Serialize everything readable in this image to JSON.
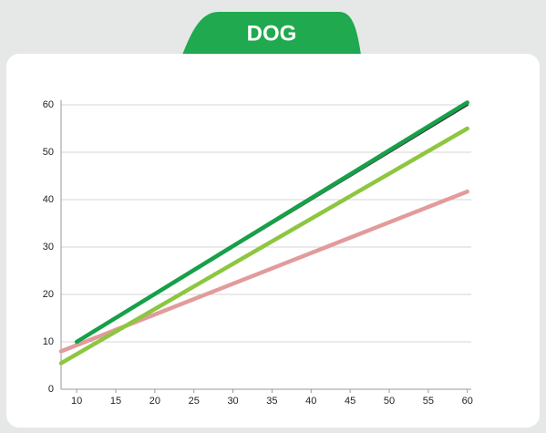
{
  "chart_data": {
    "type": "line",
    "title": "DOG",
    "xlim": [
      8,
      60.5
    ],
    "xticks": [
      10,
      15,
      20,
      25,
      30,
      35,
      40,
      45,
      50,
      55,
      60
    ],
    "ylim": [
      0,
      60
    ],
    "yticks": [
      0,
      10,
      20,
      30,
      40,
      50,
      60
    ],
    "grid": true,
    "series": [
      {
        "color": "#e29b9b",
        "x": [
          8,
          60
        ],
        "values": [
          8,
          41.7
        ]
      },
      {
        "color": "#8dc63f",
        "x": [
          8,
          60
        ],
        "values": [
          5.5,
          55
        ]
      },
      {
        "color": "#333333",
        "x": [
          10,
          60
        ],
        "values": [
          10,
          60
        ]
      },
      {
        "color": "#17a049",
        "x": [
          10,
          60
        ],
        "values": [
          10,
          60.5
        ]
      }
    ]
  }
}
